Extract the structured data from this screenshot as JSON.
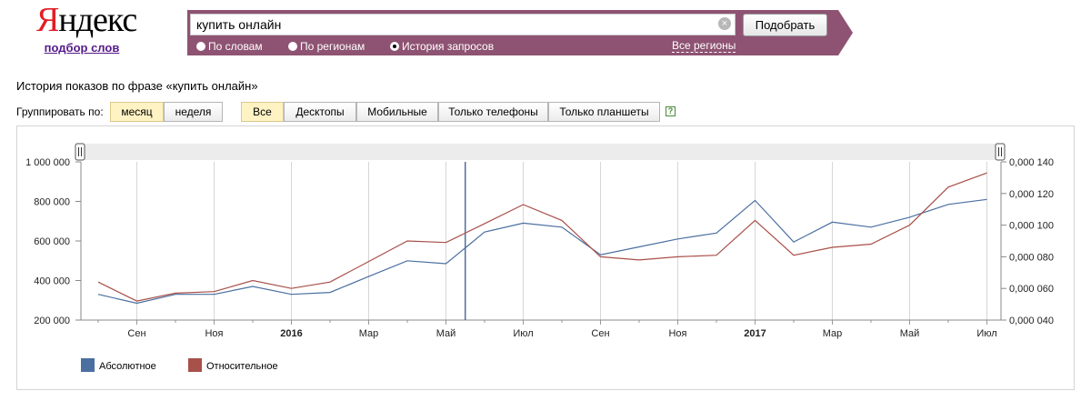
{
  "logo": {
    "brand": "Яндекс",
    "brand_first": "Я",
    "brand_rest": "ндекс",
    "subtitle": "подбор слов"
  },
  "search": {
    "query": "купить онлайн",
    "submit_label": "Подобрать",
    "modes": [
      {
        "label": "По словам",
        "selected": false
      },
      {
        "label": "По регионам",
        "selected": false
      },
      {
        "label": "История запросов",
        "selected": true
      }
    ],
    "regions_link": "Все регионы"
  },
  "page": {
    "phrase_title": "История показов по фразе «купить онлайн»",
    "group_label": "Группировать по:",
    "group_options": [
      {
        "label": "месяц",
        "active": true
      },
      {
        "label": "неделя",
        "active": false
      }
    ],
    "device_options": [
      {
        "label": "Все",
        "active": true
      },
      {
        "label": "Десктопы",
        "active": false
      },
      {
        "label": "Мобильные",
        "active": false
      },
      {
        "label": "Только телефоны",
        "active": false
      },
      {
        "label": "Только планшеты",
        "active": false
      }
    ],
    "help_icon": "?"
  },
  "colors": {
    "absolute": "#4a6fa0",
    "relative": "#a8504a",
    "searchbar": "#8e5372",
    "grid": "#d6d6d6"
  },
  "chart_data": {
    "type": "line",
    "x": [
      "2015-08",
      "2015-09",
      "2015-10",
      "2015-11",
      "2015-12",
      "2016-01",
      "2016-02",
      "2016-03",
      "2016-04",
      "2016-05",
      "2016-06",
      "2016-07",
      "2016-08",
      "2016-09",
      "2016-10",
      "2016-11",
      "2016-12",
      "2017-01",
      "2017-02",
      "2017-03",
      "2017-04",
      "2017-05",
      "2017-06",
      "2017-07"
    ],
    "x_tick_labels": [
      "Сен",
      "Ноя",
      "2016",
      "Мар",
      "Май",
      "Июл",
      "Сен",
      "Ноя",
      "2017",
      "Мар",
      "Май",
      "Июл"
    ],
    "x_tick_bold": [
      false,
      false,
      true,
      false,
      false,
      false,
      false,
      false,
      true,
      false,
      false,
      false
    ],
    "series": [
      {
        "name": "Абсолютное",
        "axis": "left",
        "values": [
          330000,
          285000,
          330000,
          330000,
          370000,
          330000,
          340000,
          420000,
          500000,
          485000,
          645000,
          690000,
          670000,
          530000,
          570000,
          610000,
          640000,
          805000,
          595000,
          695000,
          670000,
          720000,
          785000,
          810000
        ]
      },
      {
        "name": "Относительное",
        "axis": "right",
        "values": [
          0.064,
          0.052,
          0.057,
          0.058,
          0.065,
          0.06,
          0.064,
          0.077,
          0.09,
          0.089,
          0.101,
          0.113,
          0.103,
          0.08,
          0.078,
          0.08,
          0.081,
          0.103,
          0.081,
          0.086,
          0.088,
          0.1,
          0.124,
          0.133
        ]
      }
    ],
    "y_left": {
      "ylim": [
        200000,
        1000000
      ],
      "ticks": [
        "200 000",
        "400 000",
        "600 000",
        "800 000",
        "1 000 000"
      ]
    },
    "y_right": {
      "ylim": [
        0.04,
        0.14
      ],
      "ticks": [
        "0,000 040",
        "0,000 060",
        "0,000 080",
        "0,000 100",
        "0,000 120",
        "0,000 140"
      ]
    },
    "marker_month": "2016-06",
    "grid": true,
    "legend_position": "bottom-left"
  }
}
